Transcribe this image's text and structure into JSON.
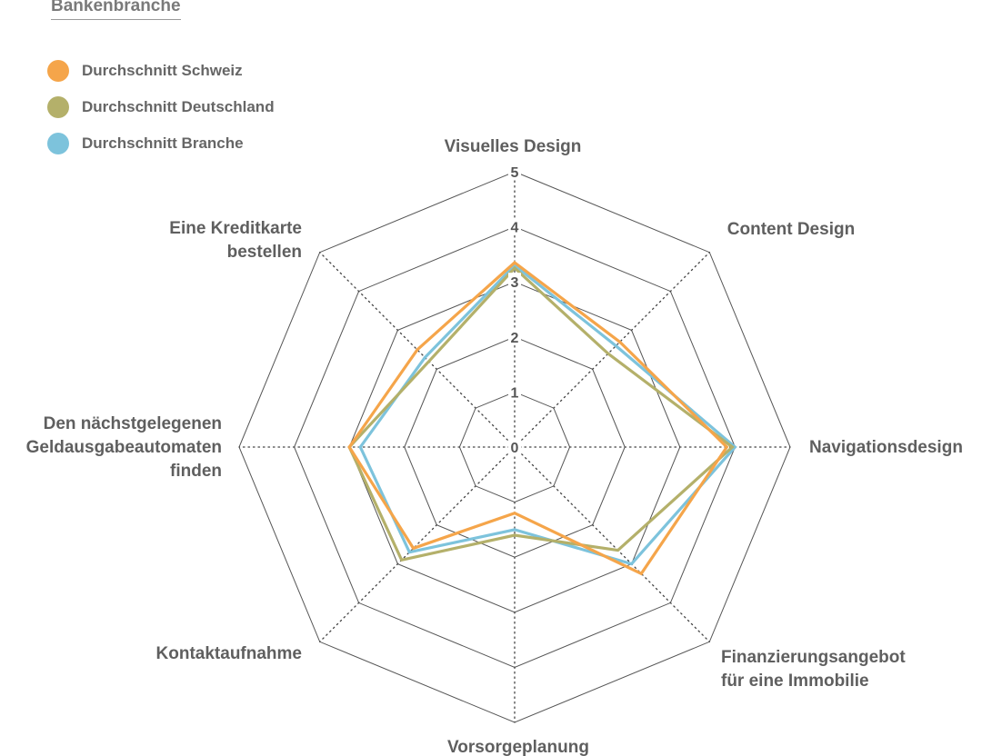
{
  "chart_data": {
    "type": "radar",
    "title": "Bankenbranche",
    "axes": [
      "Visuelles Design",
      "Content Design",
      "Navigationsdesign",
      "Finanzierungsangebot für eine Immobilie",
      "Vorsorgeplanung",
      "Kontaktaufnahme",
      "Den nächstgelegenen Geldausgabeautomaten finden",
      "Eine Kreditkarte bestellen"
    ],
    "axis_label_lines": [
      [
        "Visuelles Design"
      ],
      [
        "Content Design"
      ],
      [
        "Navigationsdesign"
      ],
      [
        "Finanzierungsangebot",
        "für eine Immobilie"
      ],
      [
        "Vorsorgeplanung"
      ],
      [
        "Kontaktaufnahme"
      ],
      [
        "Den nächstgelegenen",
        "Geldausgabeautomaten",
        "finden"
      ],
      [
        "Eine Kreditkarte",
        "bestellen"
      ]
    ],
    "range": [
      0,
      5
    ],
    "ticks": [
      "0",
      "1",
      "2",
      "3",
      "4",
      "5"
    ],
    "legend_position": "top-left",
    "series": [
      {
        "name": "Durchschnitt Branche",
        "color": "#7dc3dc",
        "values": [
          3.3,
          2.6,
          4.0,
          3.0,
          1.5,
          2.7,
          2.8,
          2.3
        ]
      },
      {
        "name": "Durchschnitt Deutschland",
        "color": "#b4b06a",
        "values": [
          3.25,
          2.4,
          3.95,
          2.65,
          1.6,
          2.9,
          3.0,
          2.2
        ]
      },
      {
        "name": "Durchschnitt Schweiz",
        "color": "#f5a54a",
        "values": [
          3.35,
          2.7,
          3.85,
          3.25,
          1.2,
          2.6,
          3.0,
          2.5
        ]
      }
    ]
  },
  "legend": [
    {
      "label": "Durchschnitt Schweiz",
      "color": "#f5a54a"
    },
    {
      "label": "Durchschnitt Deutschland",
      "color": "#b4b06a"
    },
    {
      "label": "Durchschnitt Branche",
      "color": "#7dc3dc"
    }
  ]
}
